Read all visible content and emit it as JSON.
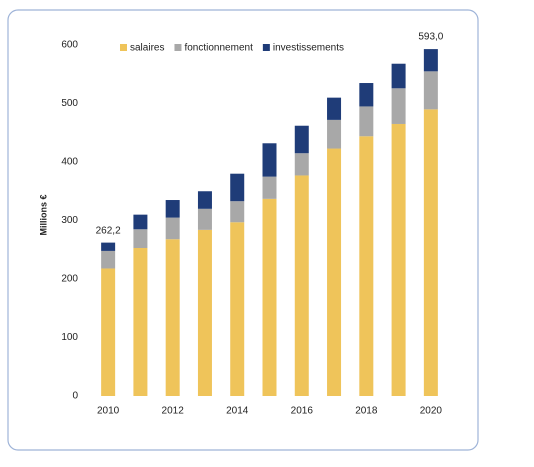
{
  "chart_data": {
    "type": "stacked-bar",
    "y_label": "Millions €",
    "categories": [
      "2010",
      null,
      "2012",
      null,
      "2014",
      null,
      "2016",
      null,
      "2018",
      null,
      "2020"
    ],
    "series": [
      {
        "name": "salaires",
        "color": "#efc45a",
        "values": [
          218,
          253,
          268,
          284,
          297,
          337,
          377,
          423,
          444,
          465,
          490
        ]
      },
      {
        "name": "fonctionnement",
        "color": "#a8a8a8",
        "values": [
          30,
          32,
          37,
          36,
          36,
          38,
          38,
          49,
          51,
          61,
          65
        ]
      },
      {
        "name": "investissements",
        "color": "#1f3c78",
        "values": [
          14.2,
          25,
          30,
          30,
          47,
          57,
          47,
          38,
          40,
          42,
          38
        ]
      }
    ],
    "annotations": [
      {
        "category": 0,
        "value": 262.2,
        "label": "262,2"
      },
      {
        "category": 10,
        "value": 593.0,
        "label": "593,0"
      }
    ],
    "ylim": [
      0,
      600
    ],
    "yticks": [
      0,
      100,
      200,
      300,
      400,
      500,
      600
    ],
    "grid": false
  }
}
